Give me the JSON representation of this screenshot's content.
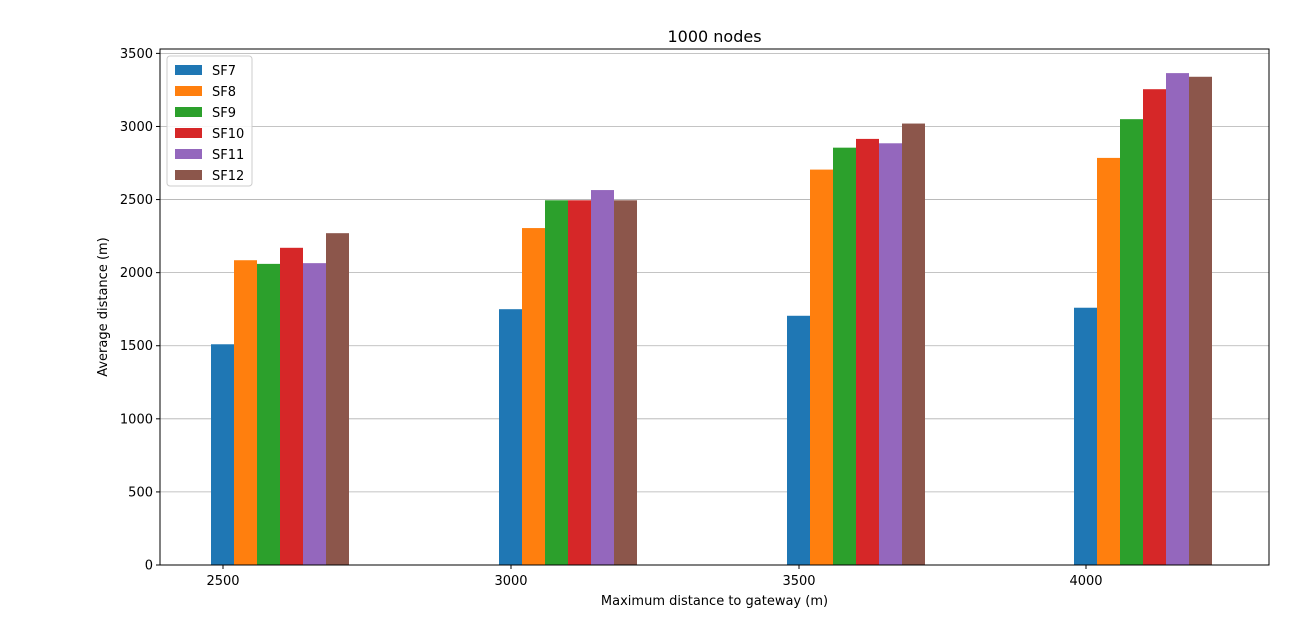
{
  "chart_data": {
    "type": "bar",
    "title": "1000 nodes",
    "xlabel": "Maximum distance to gateway (m)",
    "ylabel": "Average distance (m)",
    "categories": [
      "2500",
      "3000",
      "3500",
      "4000"
    ],
    "ylim": [
      0,
      3500
    ],
    "yticks": [
      0,
      500,
      1000,
      1500,
      2000,
      2500,
      3000,
      3500
    ],
    "grid": "horizontal",
    "legend_position": "top-left",
    "series": [
      {
        "name": "SF7",
        "color": "#1f77b4",
        "values": [
          1510,
          1750,
          1705,
          1760
        ]
      },
      {
        "name": "SF8",
        "color": "#ff7f0e",
        "values": [
          2085,
          2305,
          2705,
          2785
        ]
      },
      {
        "name": "SF9",
        "color": "#2ca02c",
        "values": [
          2060,
          2495,
          2855,
          3050
        ]
      },
      {
        "name": "SF10",
        "color": "#d62728",
        "values": [
          2170,
          2495,
          2915,
          3255
        ]
      },
      {
        "name": "SF11",
        "color": "#9467bd",
        "values": [
          2065,
          2565,
          2885,
          3365
        ]
      },
      {
        "name": "SF12",
        "color": "#8c564b",
        "values": [
          2270,
          2495,
          3020,
          3340
        ]
      }
    ]
  }
}
